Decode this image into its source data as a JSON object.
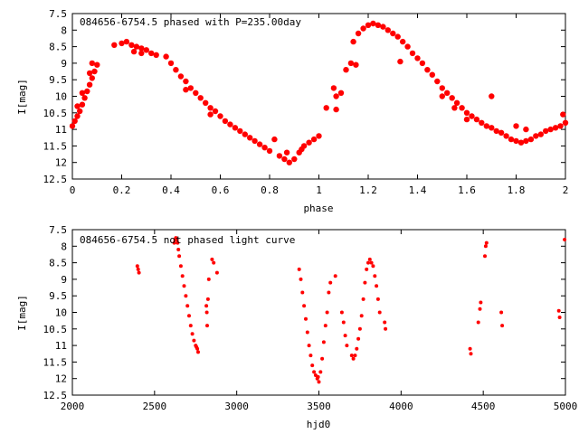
{
  "chart_data": [
    {
      "type": "scatter",
      "title": "084656-6754.5 phased with P=235.00day",
      "xlabel": "phase",
      "ylabel": "I[mag]",
      "xlim": [
        0,
        2
      ],
      "ylim": [
        12.5,
        7.5
      ],
      "y_inverted": true,
      "xticks": [
        0,
        0.2,
        0.4,
        0.6,
        0.8,
        1,
        1.2,
        1.4,
        1.6,
        1.8,
        2
      ],
      "xtick_labels": [
        "0",
        "0.2",
        "0.4",
        "0.6",
        "0.8",
        "1",
        "1.2",
        "1.4",
        "1.6",
        "1.8",
        "2"
      ],
      "yticks": [
        7.5,
        8,
        8.5,
        9,
        9.5,
        10,
        10.5,
        11,
        11.5,
        12,
        12.5
      ],
      "ytick_labels": [
        "7.5",
        "8",
        "8.5",
        "9",
        "9.5",
        "10",
        "10.5",
        "11",
        "11.5",
        "12",
        "12.5"
      ],
      "marker_color": "#ff0000",
      "grid": false,
      "series": [
        {
          "points": [
            [
              0.0,
              10.9
            ],
            [
              0.01,
              10.75
            ],
            [
              0.02,
              10.6
            ],
            [
              0.03,
              10.45
            ],
            [
              0.04,
              10.25
            ],
            [
              0.05,
              10.05
            ],
            [
              0.06,
              9.85
            ],
            [
              0.07,
              9.65
            ],
            [
              0.08,
              9.45
            ],
            [
              0.09,
              9.25
            ],
            [
              0.1,
              9.05
            ],
            [
              0.02,
              10.3
            ],
            [
              0.04,
              9.9
            ],
            [
              0.07,
              9.3
            ],
            [
              0.08,
              9.0
            ],
            [
              0.17,
              8.45
            ],
            [
              0.2,
              8.4
            ],
            [
              0.22,
              8.35
            ],
            [
              0.24,
              8.45
            ],
            [
              0.26,
              8.5
            ],
            [
              0.28,
              8.55
            ],
            [
              0.3,
              8.6
            ],
            [
              0.32,
              8.7
            ],
            [
              0.34,
              8.75
            ],
            [
              0.25,
              8.65
            ],
            [
              0.28,
              8.7
            ],
            [
              0.38,
              8.8
            ],
            [
              0.4,
              9.0
            ],
            [
              0.42,
              9.2
            ],
            [
              0.44,
              9.4
            ],
            [
              0.46,
              9.55
            ],
            [
              0.48,
              9.75
            ],
            [
              0.5,
              9.9
            ],
            [
              0.52,
              10.05
            ],
            [
              0.54,
              10.2
            ],
            [
              0.56,
              10.35
            ],
            [
              0.58,
              10.45
            ],
            [
              0.6,
              10.6
            ],
            [
              0.62,
              10.75
            ],
            [
              0.64,
              10.85
            ],
            [
              0.66,
              10.95
            ],
            [
              0.68,
              11.05
            ],
            [
              0.7,
              11.15
            ],
            [
              0.72,
              11.25
            ],
            [
              0.74,
              11.35
            ],
            [
              0.76,
              11.45
            ],
            [
              0.78,
              11.55
            ],
            [
              0.8,
              11.65
            ],
            [
              0.46,
              9.8
            ],
            [
              0.56,
              10.55
            ],
            [
              0.82,
              11.3
            ],
            [
              0.84,
              11.8
            ],
            [
              0.86,
              11.9
            ],
            [
              0.88,
              12.0
            ],
            [
              0.9,
              11.9
            ],
            [
              0.92,
              11.7
            ],
            [
              0.94,
              11.5
            ],
            [
              0.96,
              11.4
            ],
            [
              0.98,
              11.3
            ],
            [
              1.0,
              11.2
            ],
            [
              0.87,
              11.7
            ],
            [
              0.93,
              11.6
            ],
            [
              1.03,
              10.35
            ],
            [
              1.06,
              9.75
            ],
            [
              1.07,
              10.0
            ],
            [
              1.07,
              10.4
            ],
            [
              1.09,
              9.9
            ],
            [
              1.11,
              9.2
            ],
            [
              1.13,
              9.0
            ],
            [
              1.15,
              9.05
            ],
            [
              1.14,
              8.35
            ],
            [
              1.16,
              8.1
            ],
            [
              1.18,
              7.95
            ],
            [
              1.2,
              7.85
            ],
            [
              1.22,
              7.8
            ],
            [
              1.24,
              7.85
            ],
            [
              1.26,
              7.9
            ],
            [
              1.28,
              8.0
            ],
            [
              1.3,
              8.1
            ],
            [
              1.32,
              8.2
            ],
            [
              1.34,
              8.35
            ],
            [
              1.36,
              8.5
            ],
            [
              1.38,
              8.7
            ],
            [
              1.4,
              8.85
            ],
            [
              1.42,
              9.0
            ],
            [
              1.44,
              9.2
            ],
            [
              1.46,
              9.35
            ],
            [
              1.48,
              9.55
            ],
            [
              1.5,
              9.75
            ],
            [
              1.52,
              9.9
            ],
            [
              1.54,
              10.05
            ],
            [
              1.56,
              10.2
            ],
            [
              1.58,
              10.35
            ],
            [
              1.6,
              10.5
            ],
            [
              1.62,
              10.6
            ],
            [
              1.64,
              10.7
            ],
            [
              1.66,
              10.8
            ],
            [
              1.68,
              10.9
            ],
            [
              1.7,
              10.95
            ],
            [
              1.72,
              11.05
            ],
            [
              1.74,
              11.1
            ],
            [
              1.33,
              8.95
            ],
            [
              1.5,
              10.0
            ],
            [
              1.55,
              10.35
            ],
            [
              1.6,
              10.7
            ],
            [
              1.7,
              10.0
            ],
            [
              1.76,
              11.2
            ],
            [
              1.78,
              11.3
            ],
            [
              1.8,
              11.35
            ],
            [
              1.82,
              11.4
            ],
            [
              1.84,
              11.35
            ],
            [
              1.86,
              11.3
            ],
            [
              1.88,
              11.2
            ],
            [
              1.9,
              11.15
            ],
            [
              1.92,
              11.05
            ],
            [
              1.94,
              11.0
            ],
            [
              1.96,
              10.95
            ],
            [
              1.98,
              10.9
            ],
            [
              2.0,
              10.8
            ],
            [
              1.99,
              10.55
            ],
            [
              1.8,
              10.9
            ],
            [
              1.84,
              11.0
            ]
          ]
        }
      ]
    },
    {
      "type": "scatter",
      "title": "084656-6754.5 not phased light curve",
      "xlabel": "hjd0",
      "ylabel": "I[mag]",
      "xlim": [
        2000,
        5000
      ],
      "ylim": [
        12.5,
        7.5
      ],
      "y_inverted": true,
      "xticks": [
        2000,
        2500,
        3000,
        3500,
        4000,
        4500,
        5000
      ],
      "xtick_labels": [
        "2000",
        "2500",
        "3000",
        "3500",
        "4000",
        "4500",
        "5000"
      ],
      "yticks": [
        7.5,
        8,
        8.5,
        9,
        9.5,
        10,
        10.5,
        11,
        11.5,
        12,
        12.5
      ],
      "ytick_labels": [
        "7.5",
        "8",
        "8.5",
        "9",
        "9.5",
        "10",
        "10.5",
        "11",
        "11.5",
        "12",
        "12.5"
      ],
      "marker_color": "#ff0000",
      "grid": false,
      "series": [
        {
          "points": [
            [
              2395,
              8.6
            ],
            [
              2400,
              8.7
            ],
            [
              2405,
              8.8
            ],
            [
              2620,
              7.9
            ],
            [
              2625,
              7.8
            ],
            [
              2630,
              7.75
            ],
            [
              2635,
              7.8
            ],
            [
              2640,
              7.9
            ],
            [
              2645,
              8.1
            ],
            [
              2650,
              8.3
            ],
            [
              2660,
              8.6
            ],
            [
              2670,
              8.9
            ],
            [
              2680,
              9.2
            ],
            [
              2690,
              9.5
            ],
            [
              2700,
              9.8
            ],
            [
              2710,
              10.1
            ],
            [
              2720,
              10.4
            ],
            [
              2730,
              10.65
            ],
            [
              2740,
              10.85
            ],
            [
              2750,
              11.0
            ],
            [
              2760,
              11.1
            ],
            [
              2765,
              11.2
            ],
            [
              2755,
              11.05
            ],
            [
              2815,
              9.8
            ],
            [
              2818,
              10.0
            ],
            [
              2820,
              10.4
            ],
            [
              2825,
              9.6
            ],
            [
              2830,
              9.0
            ],
            [
              2850,
              8.4
            ],
            [
              2860,
              8.5
            ],
            [
              2880,
              8.8
            ],
            [
              3380,
              8.7
            ],
            [
              3390,
              9.0
            ],
            [
              3400,
              9.4
            ],
            [
              3410,
              9.8
            ],
            [
              3420,
              10.2
            ],
            [
              3430,
              10.6
            ],
            [
              3440,
              11.0
            ],
            [
              3450,
              11.3
            ],
            [
              3460,
              11.6
            ],
            [
              3470,
              11.8
            ],
            [
              3480,
              11.9
            ],
            [
              3490,
              12.0
            ],
            [
              3500,
              12.1
            ],
            [
              3510,
              11.8
            ],
            [
              3520,
              11.4
            ],
            [
              3530,
              10.9
            ],
            [
              3540,
              10.4
            ],
            [
              3550,
              10.0
            ],
            [
              3560,
              9.4
            ],
            [
              3570,
              9.1
            ],
            [
              3495,
              11.95
            ],
            [
              3600,
              8.9
            ],
            [
              3640,
              10.0
            ],
            [
              3650,
              10.3
            ],
            [
              3660,
              10.7
            ],
            [
              3670,
              11.0
            ],
            [
              3700,
              11.3
            ],
            [
              3710,
              11.4
            ],
            [
              3720,
              11.3
            ],
            [
              3730,
              11.1
            ],
            [
              3740,
              10.8
            ],
            [
              3750,
              10.5
            ],
            [
              3760,
              10.1
            ],
            [
              3770,
              9.6
            ],
            [
              3780,
              9.1
            ],
            [
              3790,
              8.7
            ],
            [
              3800,
              8.5
            ],
            [
              3810,
              8.4
            ],
            [
              3820,
              8.5
            ],
            [
              3830,
              8.6
            ],
            [
              3840,
              8.9
            ],
            [
              3850,
              9.2
            ],
            [
              3860,
              9.6
            ],
            [
              3870,
              10.0
            ],
            [
              3900,
              10.3
            ],
            [
              3905,
              10.5
            ],
            [
              4420,
              11.1
            ],
            [
              4425,
              11.25
            ],
            [
              4470,
              10.3
            ],
            [
              4480,
              9.9
            ],
            [
              4485,
              9.7
            ],
            [
              4510,
              8.3
            ],
            [
              4515,
              8.0
            ],
            [
              4520,
              7.9
            ],
            [
              4610,
              10.0
            ],
            [
              4615,
              10.4
            ],
            [
              4960,
              9.95
            ],
            [
              4965,
              10.15
            ],
            [
              4995,
              7.8
            ]
          ]
        }
      ]
    }
  ]
}
